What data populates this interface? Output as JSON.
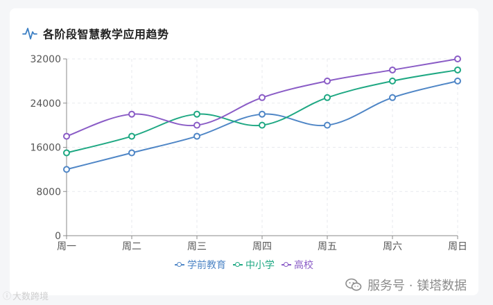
{
  "title": "各阶段智慧教学应用趋势",
  "icon": "line-trend-icon",
  "colors": {
    "axis": "#8a8a8a",
    "grid": "#e7e9ee",
    "title_icon": "#3b7fc4"
  },
  "chart_data": {
    "type": "line",
    "categories": [
      "周一",
      "周二",
      "周三",
      "周四",
      "周五",
      "周六",
      "周日"
    ],
    "series": [
      {
        "name": "学前教育",
        "color": "#4f86c6",
        "values": [
          12000,
          15000,
          18000,
          22000,
          20000,
          25000,
          28000
        ]
      },
      {
        "name": "中小学",
        "color": "#1fa883",
        "values": [
          15000,
          18000,
          22000,
          20000,
          25000,
          28000,
          30000
        ]
      },
      {
        "name": "高校",
        "color": "#8a5cc6",
        "values": [
          18000,
          22000,
          20000,
          25000,
          28000,
          30000,
          32000
        ]
      }
    ],
    "yticks": [
      0,
      8000,
      16000,
      24000,
      32000
    ],
    "ylim": [
      0,
      32000
    ],
    "grid": true,
    "legend_position": "bottom",
    "smooth": true
  },
  "watermark_left": "大数跨境",
  "watermark_right": "服务号 · 镁塔数据",
  "watermark_icon": "wechat-icon"
}
